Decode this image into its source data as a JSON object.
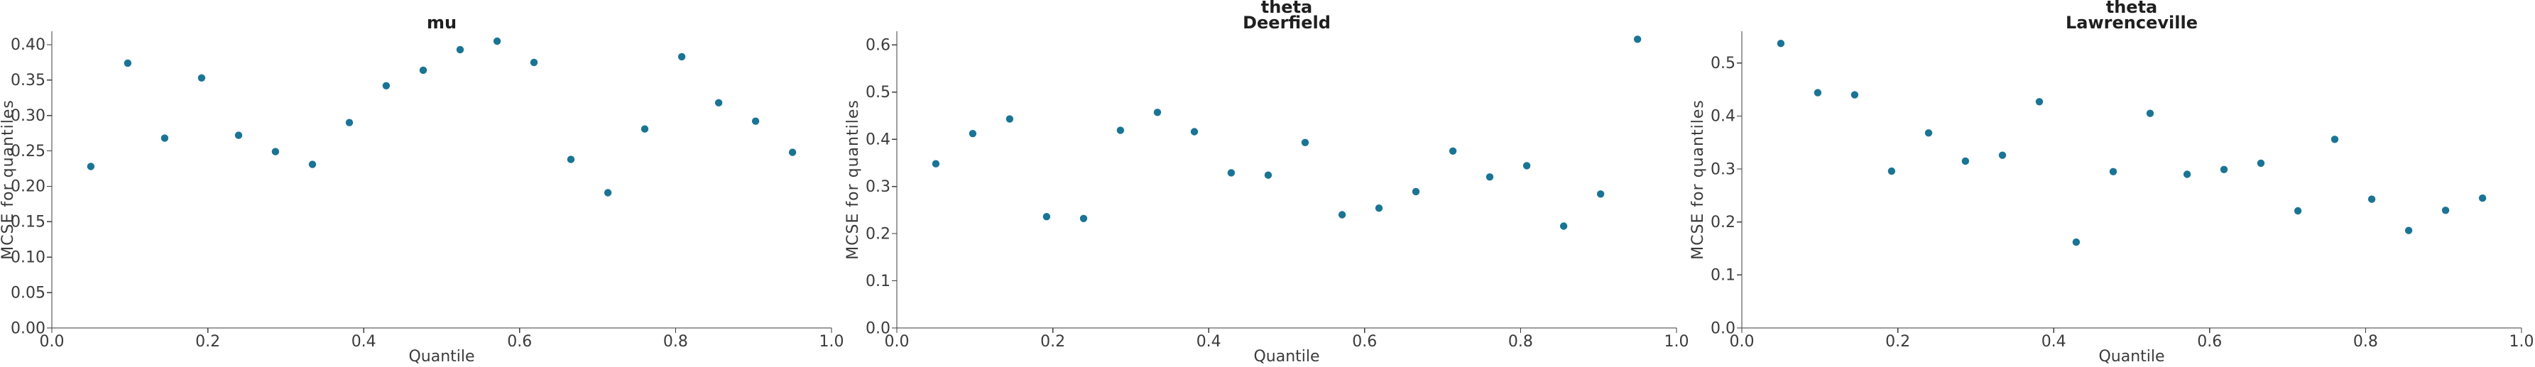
{
  "figure": {
    "background": "#ffffff",
    "point_color": "#1a7495",
    "axis_color": "#3b3b3b",
    "tick_text_color": "#3b3b3b",
    "title_color": "#1f1f1f"
  },
  "chart_data": [
    {
      "type": "scatter",
      "title_lines": [
        "mu"
      ],
      "xlabel": "Quantile",
      "ylabel": "MCSE for quantiles",
      "xlim": [
        0,
        1
      ],
      "ylim": [
        0,
        0.419
      ],
      "grid": false,
      "legend": null,
      "xticks": {
        "values": [
          0.0,
          0.2,
          0.4,
          0.6,
          0.8,
          1.0
        ],
        "labels": [
          "0.0",
          "0.2",
          "0.4",
          "0.6",
          "0.8",
          "1.0"
        ]
      },
      "yticks": {
        "values": [
          0.0,
          0.05,
          0.1,
          0.15,
          0.2,
          0.25,
          0.3,
          0.35,
          0.4
        ],
        "labels": [
          "0.00",
          "0.05",
          "0.10",
          "0.15",
          "0.20",
          "0.25",
          "0.30",
          "0.35",
          "0.40"
        ]
      },
      "x": [
        0.05,
        0.0974,
        0.1447,
        0.1921,
        0.2395,
        0.2868,
        0.3342,
        0.3816,
        0.4289,
        0.4763,
        0.5237,
        0.5711,
        0.6184,
        0.6658,
        0.7132,
        0.7605,
        0.8079,
        0.8553,
        0.9026,
        0.95
      ],
      "y": [
        0.228,
        0.374,
        0.268,
        0.353,
        0.272,
        0.249,
        0.231,
        0.29,
        0.342,
        0.364,
        0.393,
        0.405,
        0.375,
        0.238,
        0.191,
        0.281,
        0.383,
        0.318,
        0.292,
        0.248
      ]
    },
    {
      "type": "scatter",
      "title_lines": [
        "theta",
        "Deerfield"
      ],
      "xlabel": "Quantile",
      "ylabel": "MCSE for quantiles",
      "xlim": [
        0,
        1
      ],
      "ylim": [
        0,
        0.629
      ],
      "grid": false,
      "legend": null,
      "xticks": {
        "values": [
          0.0,
          0.2,
          0.4,
          0.6,
          0.8,
          1.0
        ],
        "labels": [
          "0.0",
          "0.2",
          "0.4",
          "0.6",
          "0.8",
          "1.0"
        ]
      },
      "yticks": {
        "values": [
          0.0,
          0.1,
          0.2,
          0.3,
          0.4,
          0.5,
          0.6
        ],
        "labels": [
          "0.0",
          "0.1",
          "0.2",
          "0.3",
          "0.4",
          "0.5",
          "0.6"
        ]
      },
      "x": [
        0.05,
        0.0974,
        0.1447,
        0.1921,
        0.2395,
        0.2868,
        0.3342,
        0.3816,
        0.4289,
        0.4763,
        0.5237,
        0.5711,
        0.6184,
        0.6658,
        0.7132,
        0.7605,
        0.8079,
        0.8553,
        0.9026,
        0.95
      ],
      "y": [
        0.348,
        0.412,
        0.443,
        0.236,
        0.232,
        0.419,
        0.457,
        0.416,
        0.329,
        0.324,
        0.393,
        0.24,
        0.254,
        0.289,
        0.375,
        0.32,
        0.344,
        0.216,
        0.284,
        0.612
      ]
    },
    {
      "type": "scatter",
      "title_lines": [
        "theta",
        "Lawrenceville"
      ],
      "xlabel": "Quantile",
      "ylabel": "MCSE for quantiles",
      "xlim": [
        0,
        1
      ],
      "ylim": [
        0,
        0.56
      ],
      "grid": false,
      "legend": null,
      "xticks": {
        "values": [
          0.0,
          0.2,
          0.4,
          0.6,
          0.8,
          1.0
        ],
        "labels": [
          "0.0",
          "0.2",
          "0.4",
          "0.6",
          "0.8",
          "1.0"
        ]
      },
      "yticks": {
        "values": [
          0.0,
          0.1,
          0.2,
          0.3,
          0.4,
          0.5
        ],
        "labels": [
          "0.0",
          "0.1",
          "0.2",
          "0.3",
          "0.4",
          "0.5"
        ]
      },
      "x": [
        0.05,
        0.0974,
        0.1447,
        0.1921,
        0.2395,
        0.2868,
        0.3342,
        0.3816,
        0.4289,
        0.4763,
        0.5237,
        0.5711,
        0.6184,
        0.6658,
        0.7132,
        0.7605,
        0.8079,
        0.8553,
        0.9026,
        0.95
      ],
      "y": [
        0.537,
        0.444,
        0.44,
        0.296,
        0.368,
        0.315,
        0.326,
        0.427,
        0.162,
        0.295,
        0.405,
        0.29,
        0.299,
        0.311,
        0.221,
        0.356,
        0.243,
        0.184,
        0.222,
        0.245
      ]
    }
  ]
}
